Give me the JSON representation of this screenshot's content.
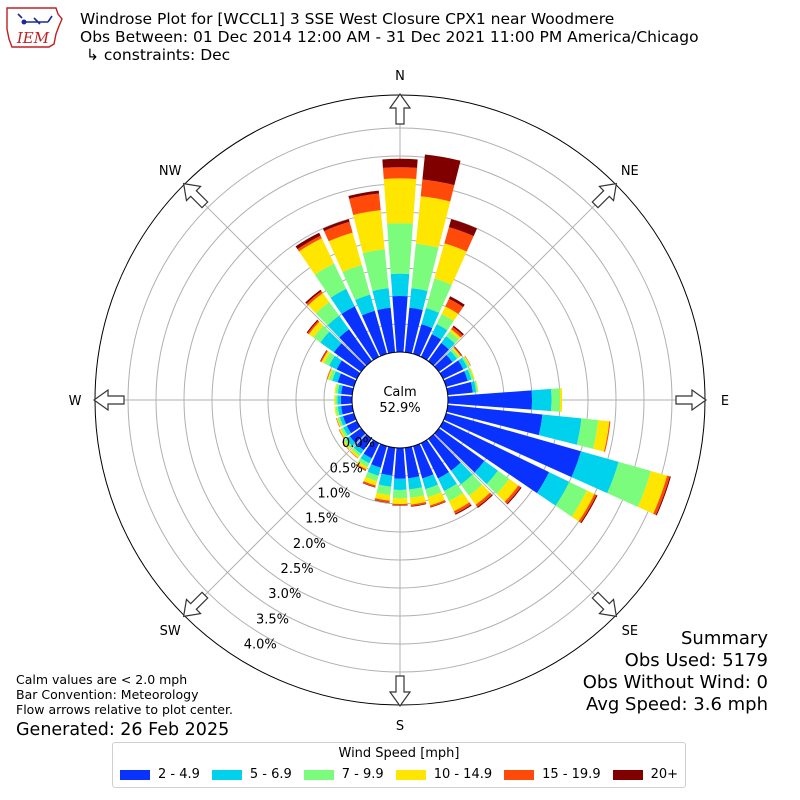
{
  "header": {
    "logo_text": "IEM",
    "title": "Windrose Plot for [WCCL1] 3 SSE West Closure CPX1 near Woodmere",
    "obs_between": "Obs Between: 01 Dec 2014 12:00 AM - 31 Dec 2021 11:00 PM America/Chicago",
    "constraints": "↳ constraints: Dec"
  },
  "summary": {
    "heading": "Summary",
    "obs_used": "Obs Used: 5179",
    "obs_without_wind": "Obs Without Wind: 0",
    "avg_speed": "Avg Speed: 3.6 mph"
  },
  "footnotes": {
    "calm_note": "Calm values are < 2.0 mph",
    "bar_convention": "Bar Convention: Meteorology",
    "flow_arrows": "Flow arrows relative to plot center.",
    "generated": "Generated: 26 Feb 2025"
  },
  "legend": {
    "title": "Wind Speed [mph]",
    "items": [
      {
        "label": "2 - 4.9",
        "color": "#0a32ff"
      },
      {
        "label": "5 - 6.9",
        "color": "#00d2ee"
      },
      {
        "label": "7 - 9.9",
        "color": "#7cfc7c"
      },
      {
        "label": "10 - 14.9",
        "color": "#ffe600"
      },
      {
        "label": "15 - 19.9",
        "color": "#ff4a0a"
      },
      {
        "label": "20+",
        "color": "#800000"
      }
    ]
  },
  "chart_data": {
    "type": "windrose",
    "calm_label": "Calm",
    "calm_value": "52.9%",
    "radial_ticks": [
      "0.0%",
      "0.5%",
      "1.0%",
      "1.5%",
      "2.0%",
      "2.5%",
      "3.0%",
      "3.5%",
      "4.0%"
    ],
    "direction_labels": [
      "N",
      "NE",
      "E",
      "SE",
      "S",
      "SW",
      "W",
      "NW"
    ],
    "speed_bins": [
      "2 - 4.9",
      "5 - 6.9",
      "7 - 9.9",
      "10 - 14.9",
      "15 - 19.9",
      "20+"
    ],
    "directions_deg": [
      0,
      10,
      20,
      30,
      40,
      50,
      60,
      70,
      80,
      90,
      100,
      110,
      120,
      130,
      140,
      150,
      160,
      170,
      180,
      190,
      200,
      210,
      220,
      230,
      240,
      250,
      260,
      270,
      280,
      290,
      300,
      310,
      320,
      330,
      340,
      350
    ],
    "bars": [
      [
        1.0,
        0.4,
        0.9,
        0.8,
        0.2,
        0.15
      ],
      [
        0.8,
        0.35,
        0.8,
        0.85,
        0.3,
        0.45
      ],
      [
        0.55,
        0.3,
        0.55,
        0.65,
        0.3,
        0.15
      ],
      [
        0.45,
        0.2,
        0.2,
        0.15,
        0.15,
        0.05
      ],
      [
        0.4,
        0.15,
        0.1,
        0.05,
        0.05,
        0.03
      ],
      [
        0.3,
        0.1,
        0.05,
        0.03,
        0.02,
        0.01
      ],
      [
        0.4,
        0.08,
        0.04,
        0.02,
        0.01,
        0.0
      ],
      [
        0.4,
        0.07,
        0.04,
        0.02,
        0.0,
        0.0
      ],
      [
        0.45,
        0.06,
        0.03,
        0.01,
        0.0,
        0.0
      ],
      [
        1.5,
        0.35,
        0.15,
        0.04,
        0.0,
        0.0
      ],
      [
        1.7,
        0.7,
        0.3,
        0.2,
        0.02,
        0.0
      ],
      [
        2.5,
        0.7,
        0.6,
        0.3,
        0.05,
        0.02
      ],
      [
        2.1,
        0.4,
        0.35,
        0.15,
        0.04,
        0.02
      ],
      [
        1.0,
        0.3,
        0.25,
        0.2,
        0.05,
        0.02
      ],
      [
        0.7,
        0.3,
        0.25,
        0.2,
        0.05,
        0.02
      ],
      [
        0.7,
        0.25,
        0.2,
        0.2,
        0.05,
        0.02
      ],
      [
        0.6,
        0.2,
        0.15,
        0.15,
        0.03,
        0.01
      ],
      [
        0.55,
        0.2,
        0.15,
        0.12,
        0.03,
        0.01
      ],
      [
        0.55,
        0.2,
        0.15,
        0.1,
        0.02,
        0.01
      ],
      [
        0.5,
        0.2,
        0.15,
        0.1,
        0.03,
        0.01
      ],
      [
        0.4,
        0.15,
        0.1,
        0.08,
        0.03,
        0.01
      ],
      [
        0.3,
        0.1,
        0.07,
        0.05,
        0.02,
        0.01
      ],
      [
        0.25,
        0.08,
        0.05,
        0.04,
        0.01,
        0.0
      ],
      [
        0.25,
        0.08,
        0.05,
        0.03,
        0.01,
        0.0
      ],
      [
        0.2,
        0.07,
        0.05,
        0.03,
        0.01,
        0.0
      ],
      [
        0.2,
        0.06,
        0.04,
        0.02,
        0.01,
        0.0
      ],
      [
        0.2,
        0.06,
        0.04,
        0.02,
        0.0,
        0.0
      ],
      [
        0.2,
        0.06,
        0.04,
        0.02,
        0.0,
        0.0
      ],
      [
        0.2,
        0.06,
        0.04,
        0.02,
        0.0,
        0.0
      ],
      [
        0.3,
        0.1,
        0.06,
        0.03,
        0.01,
        0.0
      ],
      [
        0.4,
        0.15,
        0.1,
        0.05,
        0.02,
        0.01
      ],
      [
        0.6,
        0.3,
        0.15,
        0.1,
        0.03,
        0.02
      ],
      [
        0.7,
        0.3,
        0.3,
        0.2,
        0.04,
        0.03
      ],
      [
        1.0,
        0.35,
        0.5,
        0.5,
        0.05,
        0.06
      ],
      [
        0.8,
        0.3,
        0.55,
        0.6,
        0.2,
        0.05
      ],
      [
        0.8,
        0.35,
        0.7,
        0.7,
        0.3,
        0.05
      ]
    ]
  }
}
